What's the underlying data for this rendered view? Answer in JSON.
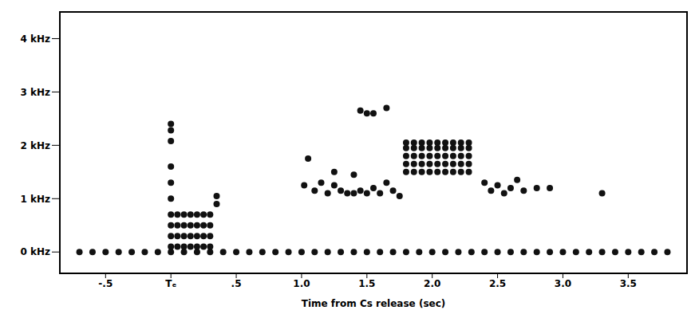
{
  "chart_data": {
    "type": "scatter",
    "x_label": "Time from Cs release (sec)",
    "color": "#111111",
    "marker": "circle",
    "grid": false,
    "xlim": [
      -0.85,
      3.95
    ],
    "xticks": [
      {
        "value": -0.5,
        "label": "-.5"
      },
      {
        "value": 0,
        "label": "Tₑ"
      },
      {
        "value": 0.5,
        "label": ".5"
      },
      {
        "value": 1,
        "label": "1.0"
      },
      {
        "value": 1.5,
        "label": "1.5"
      },
      {
        "value": 2,
        "label": "2.0"
      },
      {
        "value": 2.5,
        "label": "2.5"
      },
      {
        "value": 3,
        "label": "3.0"
      },
      {
        "value": 3.5,
        "label": "3.5"
      }
    ],
    "ylim": [
      -0.4,
      4.5
    ],
    "yticks": [
      {
        "value": 0,
        "label": "0 kHz"
      },
      {
        "value": 1,
        "label": "1 kHz"
      },
      {
        "value": 2,
        "label": "2 kHz"
      },
      {
        "value": 3,
        "label": "3 kHz"
      },
      {
        "value": 4,
        "label": "4 kHz"
      }
    ],
    "x": [
      -0.7,
      -0.6,
      -0.5,
      -0.4,
      -0.3,
      -0.2,
      -0.1,
      0.0,
      0.1,
      0.2,
      0.3,
      0.4,
      0.5,
      0.6,
      0.7,
      0.8,
      0.9,
      1.0,
      1.1,
      1.2,
      1.3,
      1.4,
      1.5,
      1.6,
      1.7,
      1.8,
      1.9,
      2.0,
      2.1,
      2.2,
      2.3,
      2.4,
      2.5,
      2.6,
      2.7,
      2.8,
      2.9,
      3.0,
      3.1,
      3.2,
      3.3,
      3.4,
      3.5,
      3.6,
      3.7,
      3.8,
      0,
      0,
      0,
      0,
      0.05,
      0.05,
      0.05,
      0.05,
      0.1,
      0.1,
      0.1,
      0.1,
      0.15,
      0.15,
      0.15,
      0.15,
      0.2,
      0.2,
      0.2,
      0.2,
      0.25,
      0.25,
      0.25,
      0.25,
      0.3,
      0.3,
      0.3,
      0.3,
      0,
      0,
      0,
      0,
      0,
      0,
      0.35,
      0.35,
      1.02,
      1.05,
      1.1,
      1.15,
      1.2,
      1.25,
      1.3,
      1.35,
      1.4,
      1.45,
      1.5,
      1.55,
      1.6,
      1.65,
      1.7,
      1.75,
      2.4,
      2.45,
      2.5,
      2.55,
      2.6,
      2.65,
      2.7,
      2.8,
      2.9,
      3.3,
      1.25,
      1.4,
      1.45,
      1.5,
      1.55,
      1.65,
      1.8,
      1.8,
      1.8,
      1.8,
      1.8,
      1.86,
      1.86,
      1.86,
      1.86,
      1.86,
      1.92,
      1.92,
      1.92,
      1.92,
      1.92,
      1.98,
      1.98,
      1.98,
      1.98,
      1.98,
      2.04,
      2.04,
      2.04,
      2.04,
      2.04,
      2.1,
      2.1,
      2.1,
      2.1,
      2.1,
      2.16,
      2.16,
      2.16,
      2.16,
      2.16,
      2.22,
      2.22,
      2.22,
      2.22,
      2.22,
      2.28,
      2.28,
      2.28,
      2.28,
      2.28
    ],
    "values": [
      0,
      0,
      0,
      0,
      0,
      0,
      0,
      0,
      0,
      0,
      0,
      0,
      0,
      0,
      0,
      0,
      0,
      0,
      0,
      0,
      0,
      0,
      0,
      0,
      0,
      0,
      0,
      0,
      0,
      0,
      0,
      0,
      0,
      0,
      0,
      0,
      0,
      0,
      0,
      0,
      0,
      0,
      0,
      0,
      0,
      0,
      0.1,
      0.3,
      0.5,
      0.7,
      0.1,
      0.3,
      0.5,
      0.7,
      0.1,
      0.3,
      0.5,
      0.7,
      0.1,
      0.3,
      0.5,
      0.7,
      0.1,
      0.3,
      0.5,
      0.7,
      0.1,
      0.3,
      0.5,
      0.7,
      0.1,
      0.3,
      0.5,
      0.7,
      2.4,
      2.28,
      2.08,
      1.6,
      1.3,
      1.0,
      0.9,
      1.05,
      1.25,
      1.75,
      1.15,
      1.3,
      1.1,
      1.25,
      1.15,
      1.1,
      1.1,
      1.15,
      1.1,
      1.2,
      1.1,
      1.3,
      1.15,
      1.05,
      1.3,
      1.15,
      1.25,
      1.1,
      1.2,
      1.35,
      1.15,
      1.2,
      1.2,
      1.1,
      1.5,
      1.45,
      2.65,
      2.6,
      2.6,
      2.7,
      1.5,
      1.65,
      1.8,
      1.95,
      2.05,
      1.5,
      1.65,
      1.8,
      1.95,
      2.05,
      1.5,
      1.65,
      1.8,
      1.95,
      2.05,
      1.5,
      1.65,
      1.8,
      1.95,
      2.05,
      1.5,
      1.65,
      1.8,
      1.95,
      2.05,
      1.5,
      1.65,
      1.8,
      1.95,
      2.05,
      1.5,
      1.65,
      1.8,
      1.95,
      2.05,
      1.5,
      1.65,
      1.8,
      1.95,
      2.05,
      1.5,
      1.65,
      1.8,
      1.95,
      2.05
    ]
  }
}
